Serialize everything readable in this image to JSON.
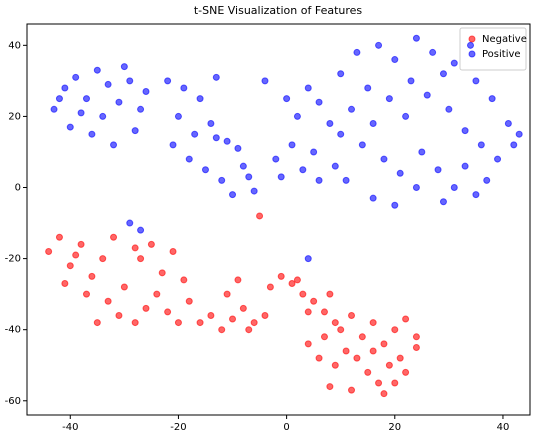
{
  "chart_data": {
    "type": "scatter",
    "title": "t-SNE Visualization of Features",
    "xlim": [
      -48,
      45
    ],
    "ylim": [
      -64,
      46
    ],
    "xticks": [
      -40,
      -20,
      0,
      20,
      40
    ],
    "yticks": [
      -60,
      -40,
      -20,
      0,
      20,
      40
    ],
    "legend": "upper right",
    "alpha": 0.6,
    "series": [
      {
        "name": "Negative",
        "color": "#ff0000",
        "x": [
          -44,
          -42,
          -40,
          -38,
          -36,
          -34,
          -32,
          -30,
          -41,
          -37,
          -33,
          -31,
          -28,
          -35,
          -39,
          -27,
          -25,
          -23,
          -21,
          -19,
          -24,
          -22,
          -20,
          -26,
          -18,
          -16,
          -14,
          -12,
          -10,
          -8,
          -6,
          -4,
          -11,
          -9,
          -7,
          -3,
          -1,
          1,
          3,
          5,
          7,
          9,
          2,
          4,
          8,
          10,
          12,
          14,
          16,
          18,
          20,
          22,
          24,
          13,
          15,
          17,
          19,
          21,
          11,
          9,
          6,
          4,
          8,
          12,
          18,
          22,
          24,
          7,
          16,
          20,
          -5,
          -28
        ],
        "values": [
          -18,
          -14,
          -22,
          -16,
          -25,
          -20,
          -14,
          -28,
          -27,
          -30,
          -32,
          -36,
          -38,
          -38,
          -19,
          -20,
          -16,
          -24,
          -18,
          -26,
          -30,
          -35,
          -38,
          -34,
          -32,
          -38,
          -36,
          -40,
          -37,
          -34,
          -38,
          -36,
          -30,
          -26,
          -40,
          -28,
          -25,
          -27,
          -30,
          -32,
          -35,
          -38,
          -26,
          -35,
          -30,
          -40,
          -36,
          -42,
          -38,
          -44,
          -40,
          -37,
          -42,
          -48,
          -52,
          -55,
          -50,
          -48,
          -46,
          -50,
          -48,
          -44,
          -56,
          -57,
          -58,
          -52,
          -45,
          -42,
          -46,
          -55,
          -8,
          -17
        ]
      },
      {
        "name": "Positive",
        "color": "#0000ff",
        "x": [
          -43,
          -41,
          -39,
          -37,
          -35,
          -33,
          -31,
          -29,
          -27,
          -40,
          -36,
          -32,
          -28,
          -34,
          -38,
          -30,
          -26,
          -42,
          -22,
          -19,
          -16,
          -13,
          -20,
          -17,
          -14,
          -11,
          -9,
          -21,
          -18,
          -15,
          -12,
          -8,
          -10,
          -6,
          -7,
          -13,
          -4,
          0,
          2,
          4,
          6,
          8,
          1,
          -2,
          3,
          6,
          9,
          -1,
          5,
          10,
          13,
          17,
          20,
          24,
          27,
          31,
          35,
          38,
          41,
          43,
          12,
          15,
          19,
          22,
          26,
          30,
          33,
          36,
          39,
          14,
          18,
          21,
          25,
          28,
          31,
          35,
          11,
          16,
          20,
          24,
          29,
          33,
          37,
          42,
          23,
          29,
          16,
          10,
          34,
          -29,
          -27,
          4
        ],
        "values": [
          22,
          28,
          31,
          25,
          33,
          29,
          24,
          30,
          22,
          17,
          15,
          12,
          16,
          20,
          21,
          34,
          27,
          25,
          30,
          28,
          25,
          31,
          20,
          15,
          18,
          13,
          11,
          12,
          8,
          5,
          2,
          6,
          -2,
          -1,
          3,
          14,
          30,
          25,
          20,
          28,
          24,
          18,
          12,
          8,
          5,
          2,
          6,
          3,
          10,
          32,
          38,
          40,
          36,
          42,
          38,
          35,
          30,
          25,
          18,
          15,
          22,
          28,
          25,
          20,
          26,
          22,
          16,
          12,
          8,
          12,
          8,
          4,
          10,
          5,
          0,
          -2,
          2,
          -3,
          -5,
          0,
          -4,
          6,
          2,
          12,
          30,
          32,
          18,
          15,
          40,
          -10,
          -12,
          -20
        ]
      }
    ]
  }
}
